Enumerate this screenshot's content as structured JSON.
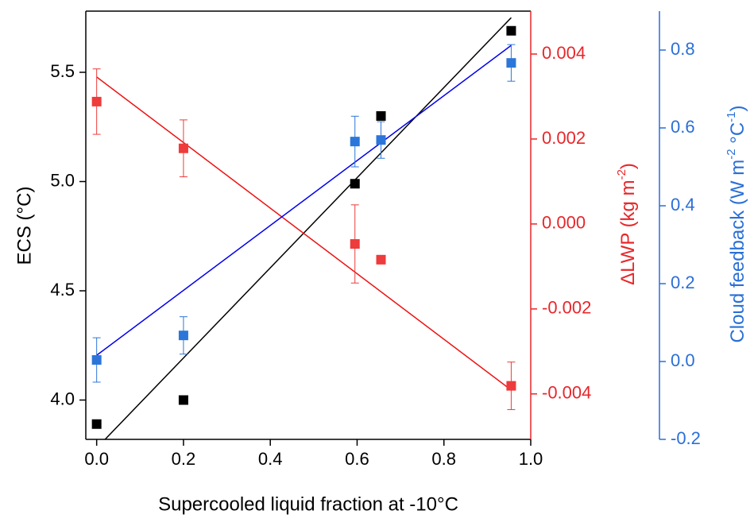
{
  "chart_data": {
    "type": "scatter",
    "x_label": "Supercooled liquid fraction at -10°C",
    "y_label": "ECS (°C)",
    "y2_label": [
      "ΔLWP (kg m",
      "-2",
      ")"
    ],
    "y3_label": [
      "Cloud feedback (W m",
      "-2",
      " °C",
      "-1",
      ")"
    ],
    "xlim": [
      -0.025,
      1.0
    ],
    "xticks": [
      {
        "value": 0,
        "label": "0.0"
      },
      0.2,
      0.4,
      0.6,
      0.8,
      {
        "value": 1,
        "label": "1.0"
      }
    ],
    "ylim": [
      3.82,
      5.78
    ],
    "yticks": [
      {
        "value": 4,
        "label": "4.0"
      },
      4.5,
      {
        "value": 5,
        "label": "5.0"
      },
      5.5
    ],
    "y2lim": [
      -0.00507,
      0.00501
    ],
    "y2ticks": [
      -0.004,
      -0.002,
      {
        "value": 0,
        "label": "0.000"
      },
      0.002,
      0.004
    ],
    "y3lim": [
      -0.2,
      0.9
    ],
    "y3ticks": [
      -0.2,
      {
        "value": 0,
        "label": "0.0"
      },
      0.2,
      0.4,
      0.6,
      0.8
    ],
    "axis_colors": {
      "y": "#000000",
      "y2": "#e8262a",
      "y3": "#2a6fd6"
    },
    "series": [
      {
        "type": "line",
        "axis": "y",
        "color": "#000000",
        "x": [
          0,
          0.955
        ],
        "values": [
          3.78,
          5.75
        ]
      },
      {
        "type": "line",
        "axis": "y2",
        "color": "#ee1111",
        "x": [
          0,
          0.955
        ],
        "values": [
          0.00346,
          -0.00391
        ]
      },
      {
        "type": "line",
        "axis": "y3",
        "color": "#0000ee",
        "x": [
          0,
          0.955
        ],
        "values": [
          0.016,
          0.812
        ]
      },
      {
        "type": "scatter",
        "axis": "y",
        "color": "#000000",
        "x": [
          0,
          0.2,
          0.595,
          0.655,
          0.955
        ],
        "values": [
          3.89,
          4.0,
          4.99,
          5.3,
          5.69
        ]
      },
      {
        "type": "scatter",
        "axis": "y2",
        "color": "#ee3b3b",
        "x": [
          0,
          0.2,
          0.595,
          0.655,
          0.955
        ],
        "values": [
          0.00288,
          0.00178,
          -0.00047,
          -0.00084,
          -0.00381
        ],
        "errors": [
          0.00077,
          0.00067,
          0.00092,
          0.0001,
          0.00056
        ]
      },
      {
        "type": "scatter",
        "axis": "y3",
        "color": "#2c76da",
        "x": [
          0,
          0.2,
          0.595,
          0.655,
          0.955
        ],
        "values": [
          0.004,
          0.067,
          0.565,
          0.569,
          0.767
        ],
        "errors": [
          0.057,
          0.048,
          0.065,
          0.047,
          0.047
        ]
      }
    ]
  }
}
